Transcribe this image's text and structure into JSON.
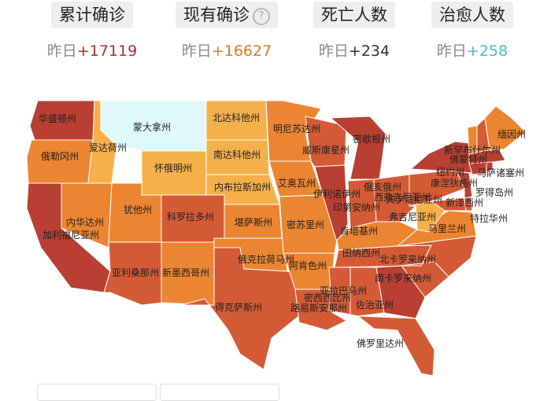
{
  "stats": [
    {
      "title": "累计确诊",
      "prefix": "昨日",
      "delta": "+17119",
      "color": "#a0312d"
    },
    {
      "title": "现有确诊",
      "prefix": "昨日",
      "delta": "+16627",
      "color": "#d47a2a"
    },
    {
      "title": "死亡人数",
      "prefix": "昨日",
      "delta": "+234",
      "color": "#333333"
    },
    {
      "title": "治愈人数",
      "prefix": "昨日",
      "delta": "+258",
      "color": "#4cb8c4"
    }
  ],
  "help_icon": "question-circle-icon",
  "map": {
    "states": {
      "wa": "华盛顿州",
      "or": "俄勒冈州",
      "ca": "加利福尼亚州",
      "id": "爱达荷州",
      "nv": "内华达州",
      "mt": "蒙大拿州",
      "wy": "怀俄明州",
      "ut": "犹他州",
      "az": "亚利桑那州",
      "co": "科罗拉多州",
      "nm": "新墨西哥州",
      "nd": "北达科他州",
      "sd": "南达科他州",
      "ne": "内布拉斯加州",
      "ks": "堪萨斯州",
      "ok": "俄克拉荷马州",
      "tx": "得克萨斯州",
      "mn": "明尼苏达州",
      "ia": "艾奥瓦州",
      "mo": "密苏里州",
      "ar": "阿肯色州",
      "la": "路易斯安那州",
      "wi": "威斯康星州",
      "il": "伊利诺伊州",
      "mi": "密歇根州",
      "in": "印第安纳州",
      "oh": "俄亥俄州",
      "ky": "肯塔基州",
      "tn": "田纳西州",
      "ms": "密西西比州",
      "al": "亚拉巴马州",
      "ga": "佐治亚州",
      "fl": "佛罗里达州",
      "sc": "南卡罗来纳州",
      "nc": "北卡罗来纳州",
      "va": "弗吉尼亚州",
      "wv": "西弗吉尼亚州",
      "md": "马里兰州",
      "de": "特拉华州",
      "pa": "宾夕法尼亚州",
      "nj": "新泽西州",
      "ny": "纽约州",
      "ct": "康涅狄格州",
      "ri": "罗得岛州",
      "ma": "马萨诸塞州",
      "vt": "佛蒙特州",
      "nh": "新罕布什尔州",
      "me": "缅因州"
    },
    "colors": {
      "dark": "#b83f31",
      "mid": "#d45a36",
      "orange": "#ec8531",
      "light": "#f5b04a",
      "cyan": "#dff8fb"
    }
  }
}
